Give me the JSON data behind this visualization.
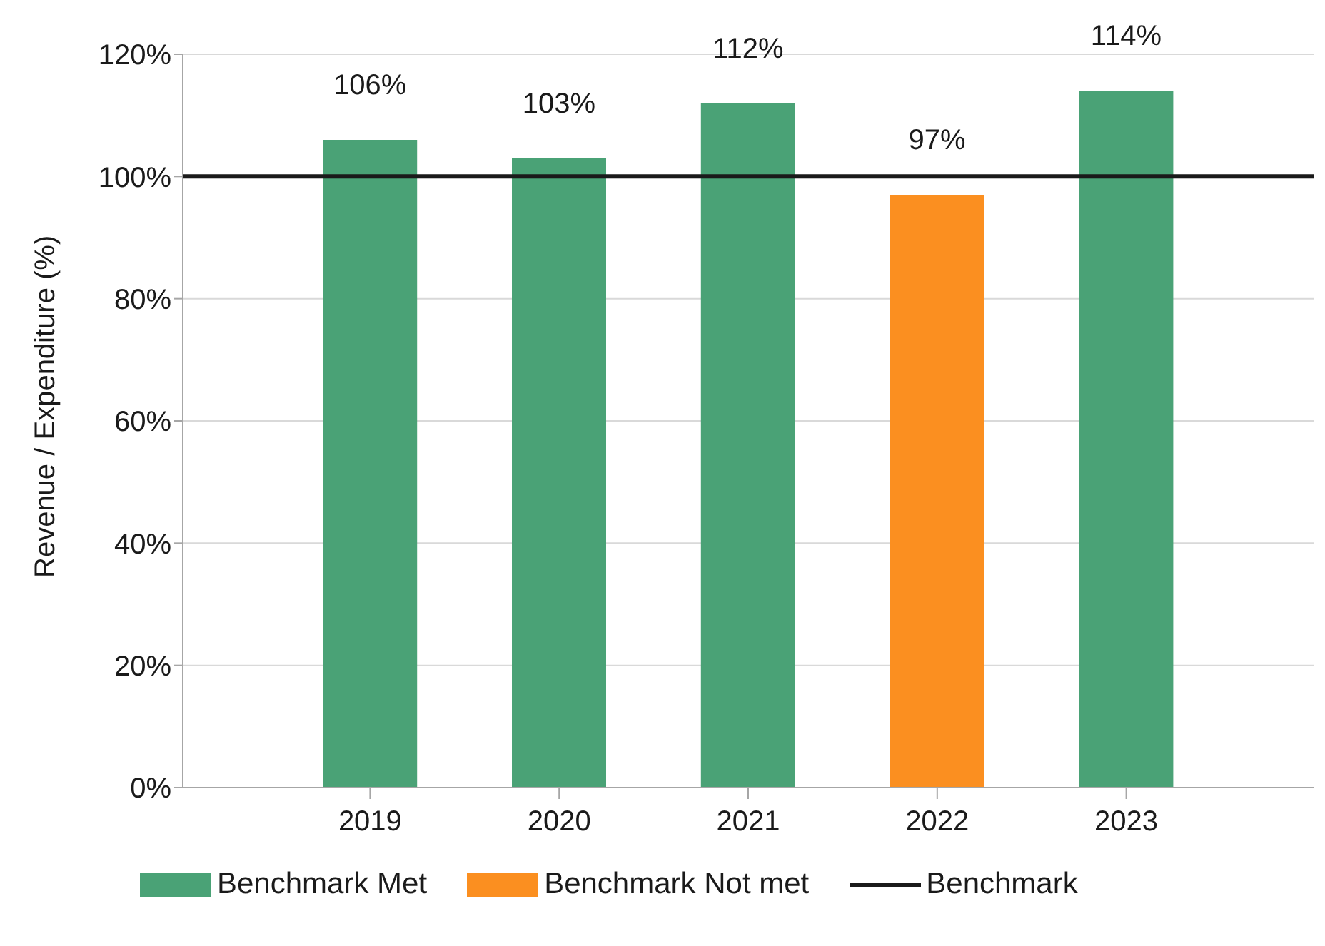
{
  "chart_data": {
    "type": "bar",
    "ylabel": "Revenue / Expenditure (%)",
    "categories": [
      "2019",
      "2020",
      "2021",
      "2022",
      "2023"
    ],
    "stacked": true,
    "series": [
      {
        "name": "Benchmark Met",
        "color": "#4aa276",
        "values": [
          106,
          103,
          112,
          null,
          114
        ],
        "value_labels": [
          "106%",
          "103%",
          "112%",
          null,
          "114%"
        ]
      },
      {
        "name": "Benchmark Not met",
        "color": "#fb8f20",
        "values": [
          null,
          null,
          null,
          97,
          null
        ],
        "value_labels": [
          null,
          null,
          null,
          "97%",
          null
        ]
      }
    ],
    "ref_lines": [
      {
        "axis": "y",
        "value": 100,
        "label": "Benchmark",
        "color": "#1a1a1a",
        "line_style": "solid"
      }
    ],
    "ylim": [
      0,
      120
    ],
    "yticks": [
      {
        "value": 0,
        "label": "0%"
      },
      {
        "value": 20,
        "label": "20%"
      },
      {
        "value": 40,
        "label": "40%"
      },
      {
        "value": 60,
        "label": "60%"
      },
      {
        "value": 80,
        "label": "80%"
      },
      {
        "value": 100,
        "label": "100%"
      },
      {
        "value": 120,
        "label": "120%"
      }
    ],
    "grid": "y",
    "legend": "bottom"
  }
}
